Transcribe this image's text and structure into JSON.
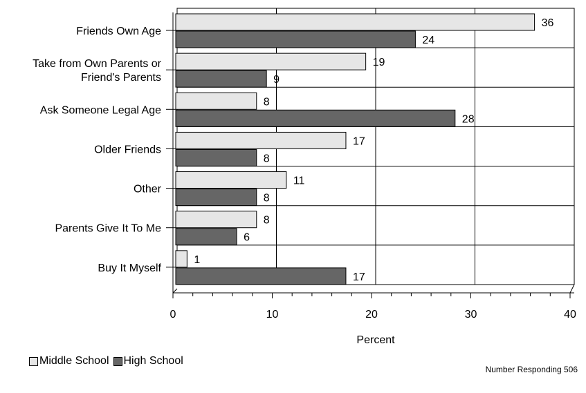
{
  "chart_data": {
    "type": "bar",
    "orientation": "horizontal",
    "categories": [
      "Friends Own Age",
      "Take from Own Parents or\nFriend's Parents",
      "Ask Someone Legal Age",
      "Older Friends",
      "Other",
      "Parents Give It To Me",
      "Buy It Myself"
    ],
    "series": [
      {
        "name": "Middle School",
        "color": "#e6e6e6",
        "values": [
          36,
          19,
          8,
          17,
          11,
          8,
          1
        ]
      },
      {
        "name": "High School",
        "color": "#666666",
        "values": [
          24,
          9,
          28,
          8,
          8,
          6,
          17
        ]
      }
    ],
    "xlabel": "Percent",
    "xlim": [
      0,
      40
    ],
    "xticks": [
      0,
      10,
      20,
      30,
      40
    ],
    "grid": true,
    "legend_position": "bottom-left",
    "data_labels": true
  },
  "footnote": "Number Responding 506",
  "legend": {
    "middle": "Middle School",
    "high": "High School"
  }
}
